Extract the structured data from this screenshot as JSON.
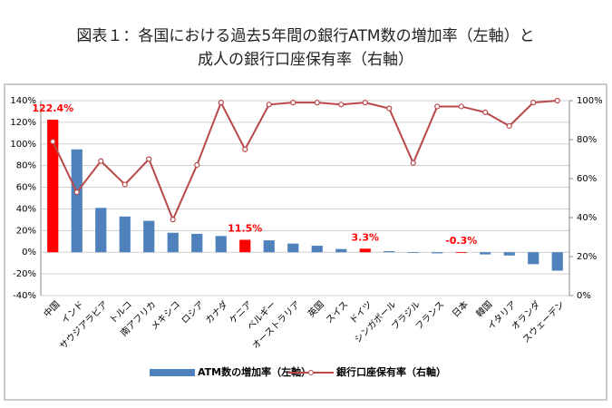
{
  "chart_data": {
    "type": "bar_line",
    "title": [
      "図表１：各国における過去5年間の銀行ATM数の増加率（左軸）と",
      "成人の銀行口座保有率（右軸）"
    ],
    "categories": [
      "中国",
      "インド",
      "サウジアラビア",
      "トルコ",
      "南アフリカ",
      "メキシコ",
      "ロシア",
      "カナダ",
      "ケニア",
      "ベルギー",
      "オーストラリア",
      "英国",
      "スイス",
      "ドイツ",
      "シンガポール",
      "ブラジル",
      "フランス",
      "日本",
      "韓国",
      "イタリア",
      "オランダ",
      "スウェーデン"
    ],
    "series": [
      {
        "name": "ATM数の増加率（左軸）",
        "type": "bar",
        "color": "#4f81bd",
        "colors": [
          "#ff0000",
          "#4f81bd",
          "#4f81bd",
          "#4f81bd",
          "#4f81bd",
          "#4f81bd",
          "#4f81bd",
          "#4f81bd",
          "#ff0000",
          "#4f81bd",
          "#4f81bd",
          "#4f81bd",
          "#4f81bd",
          "#ff0000",
          "#4f81bd",
          "#4f81bd",
          "#4f81bd",
          "#ff0000",
          "#4f81bd",
          "#4f81bd",
          "#4f81bd",
          "#4f81bd"
        ],
        "values": [
          122.4,
          95,
          41,
          33,
          29,
          18,
          17,
          15,
          11.5,
          11,
          8,
          6,
          3,
          3.3,
          1,
          0,
          -1,
          -0.3,
          -2,
          -3,
          -11,
          -17
        ],
        "value_labels": [
          "122.4%",
          null,
          null,
          null,
          null,
          null,
          null,
          null,
          "11.5%",
          null,
          null,
          null,
          null,
          "3.3%",
          null,
          null,
          null,
          "-0.3%",
          null,
          null,
          null,
          null
        ]
      },
      {
        "name": "銀行口座保有率（右軸）",
        "type": "line",
        "axis": "y2",
        "color": "#b8484a",
        "values": [
          79,
          53,
          69,
          57,
          70,
          39,
          67,
          99,
          75,
          98,
          99,
          99,
          98,
          99,
          96,
          68,
          97,
          97,
          94,
          87,
          99,
          100
        ]
      }
    ],
    "ylim": [
      -40,
      140
    ],
    "yticks": [
      {
        "value": -40,
        "label": "-40%"
      },
      {
        "value": -20,
        "label": "-20%"
      },
      {
        "value": 0,
        "label": "0%"
      },
      {
        "value": 20,
        "label": "20%"
      },
      {
        "value": 40,
        "label": "40%"
      },
      {
        "value": 60,
        "label": "60%"
      },
      {
        "value": 80,
        "label": "80%"
      },
      {
        "value": 100,
        "label": "100%"
      },
      {
        "value": 120,
        "label": "120%"
      },
      {
        "value": 140,
        "label": "140%"
      }
    ],
    "y2lim": [
      0,
      100
    ],
    "y2ticks": [
      {
        "value": 0,
        "label": "0%"
      },
      {
        "value": 20,
        "label": "20%"
      },
      {
        "value": 40,
        "label": "40%"
      },
      {
        "value": 60,
        "label": "60%"
      },
      {
        "value": 80,
        "label": "80%"
      },
      {
        "value": 100,
        "label": "100%"
      }
    ],
    "grid": true
  }
}
